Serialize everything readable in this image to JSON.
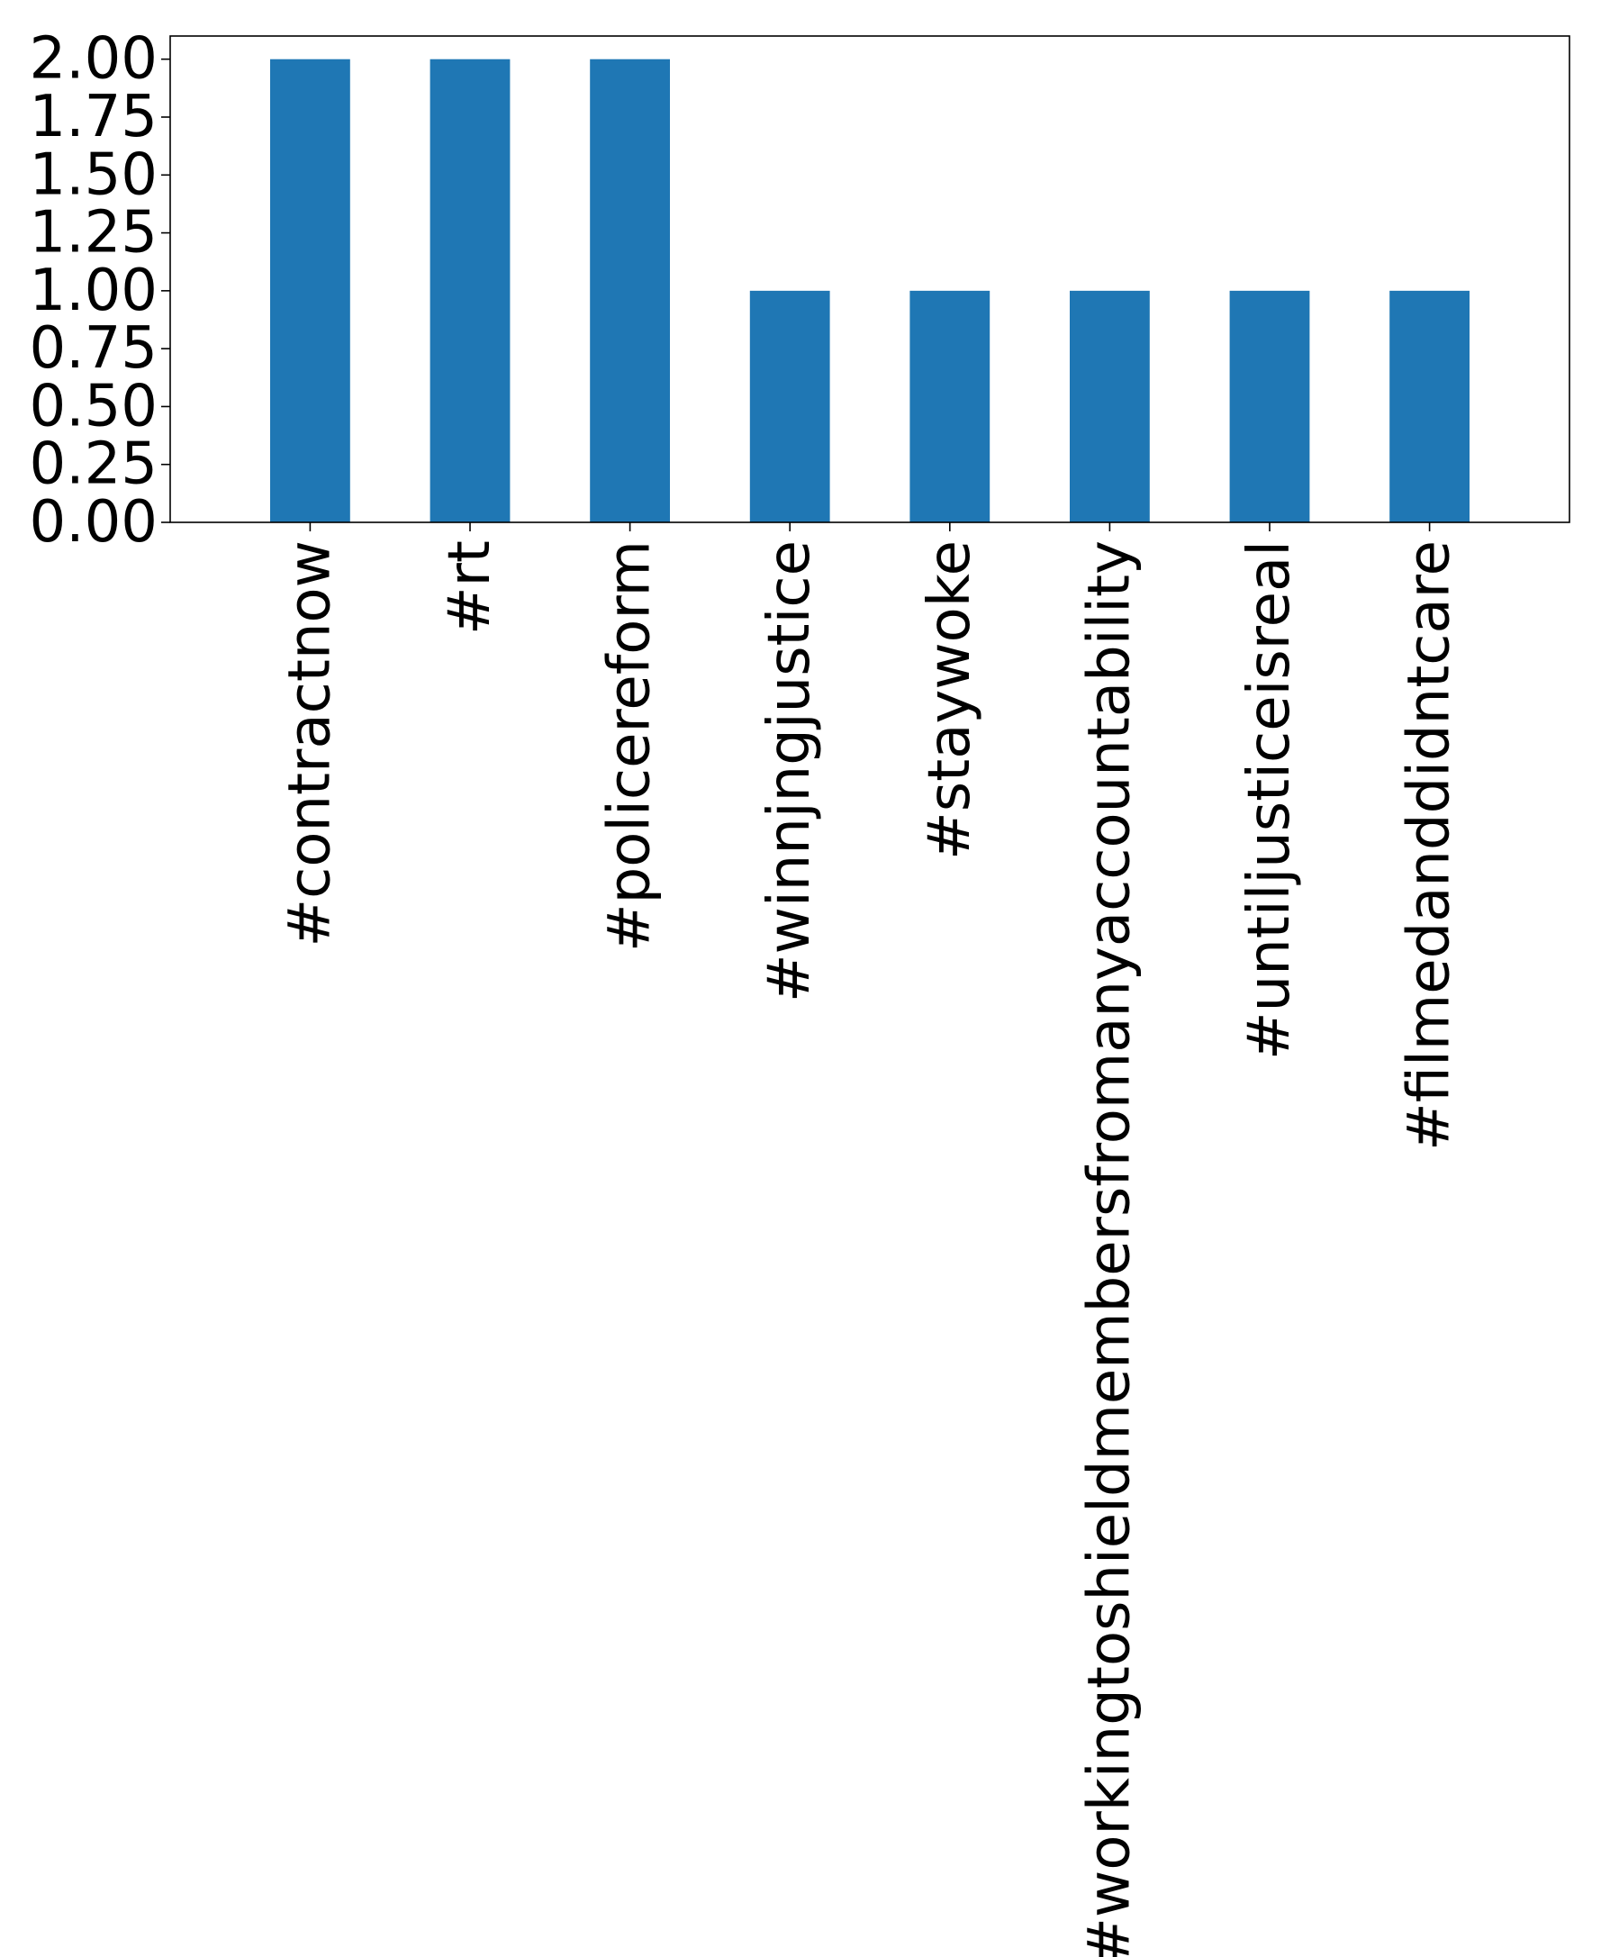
{
  "chart_data": {
    "type": "bar",
    "title": "",
    "xlabel": "",
    "ylabel": "",
    "categories": [
      "#contractnow",
      "#rt",
      "#policereform",
      "#winnjngjustice",
      "#staywoke",
      "#workingtoshieldmembersfromanyaccountability",
      "#untiljusticeisreal",
      "#filmedanddidntcare"
    ],
    "values": [
      2,
      2,
      2,
      1,
      1,
      1,
      1,
      1
    ],
    "ylim": [
      0,
      2.1
    ],
    "yticks": [
      "0.00",
      "0.25",
      "0.50",
      "0.75",
      "1.00",
      "1.25",
      "1.50",
      "1.75",
      "2.00"
    ],
    "ytick_values": [
      0,
      0.25,
      0.5,
      0.75,
      1.0,
      1.25,
      1.5,
      1.75,
      2.0
    ],
    "bar_color": "#1f77b4",
    "grid": false,
    "legend": "none"
  }
}
